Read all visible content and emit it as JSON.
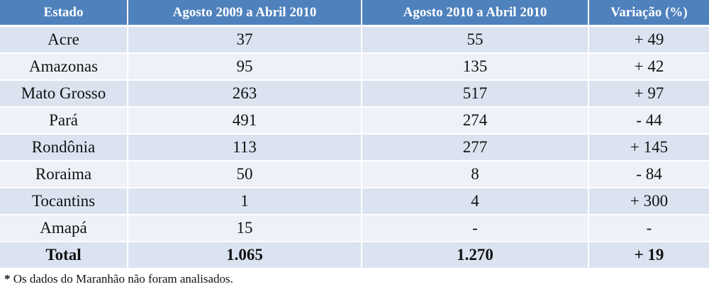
{
  "table": {
    "headers": [
      "Estado",
      "Agosto 2009 a Abril 2010",
      "Agosto 2010 a Abril 2010",
      "Variação (%)"
    ],
    "rows": [
      [
        "Acre",
        "37",
        "55",
        "+ 49"
      ],
      [
        "Amazonas",
        "95",
        "135",
        "+ 42"
      ],
      [
        "Mato Grosso",
        "263",
        "517",
        "+ 97"
      ],
      [
        "Pará",
        "491",
        "274",
        "- 44"
      ],
      [
        "Rondônia",
        "113",
        "277",
        "+ 145"
      ],
      [
        "Roraima",
        "50",
        "8",
        "- 84"
      ],
      [
        "Tocantins",
        "1",
        "4",
        "+ 300"
      ],
      [
        "Amapá",
        "15",
        "-",
        "-"
      ]
    ],
    "total": [
      "Total",
      "1.065",
      "1.270",
      "+ 19"
    ]
  },
  "footnote": {
    "marker": "*",
    "text": " Os dados do Maranhão não foram analisados."
  },
  "colors": {
    "header_bg": "#4f81bd",
    "row_dark": "#dbe3f1",
    "row_light": "#eef1f8"
  }
}
